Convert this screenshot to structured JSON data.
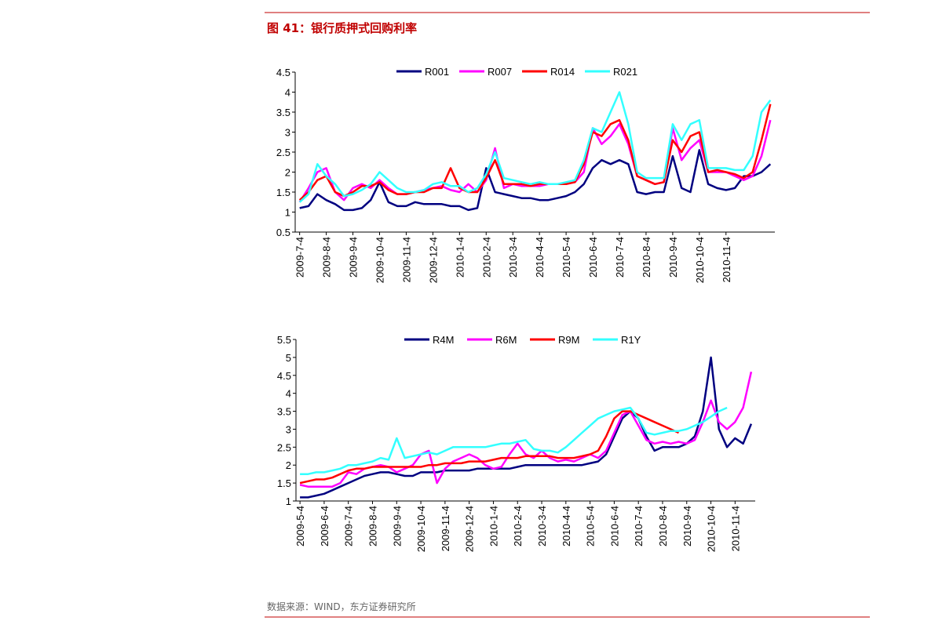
{
  "title": "图 41：银行质押式回购利率",
  "source": "数据来源：WIND，东方证券研究所",
  "chart_data": [
    {
      "type": "line",
      "categories": [
        "2009-7-4",
        null,
        null,
        "2009-8-4",
        null,
        null,
        "2009-9-4",
        null,
        null,
        "2009-10-4",
        null,
        null,
        "2009-11-4",
        null,
        null,
        "2009-12-4",
        null,
        null,
        "2010-1-4",
        null,
        null,
        "2010-2-4",
        null,
        null,
        "2010-3-4",
        null,
        null,
        "2010-4-4",
        null,
        null,
        "2010-5-4",
        null,
        null,
        "2010-6-4",
        null,
        null,
        "2010-7-4",
        null,
        null,
        "2010-8-4",
        null,
        null,
        "2010-9-4",
        null,
        null,
        "2010-10-4",
        null,
        null,
        "2010-11-4",
        null,
        null,
        null,
        null,
        null
      ],
      "ylim": [
        0.5,
        4.5
      ],
      "yticks": [
        0.5,
        1,
        1.5,
        2,
        2.5,
        3,
        3.5,
        4,
        4.5
      ],
      "series": [
        {
          "name": "R001",
          "color": "#000080",
          "values": [
            1.1,
            1.15,
            1.45,
            1.3,
            1.2,
            1.05,
            1.05,
            1.1,
            1.3,
            1.75,
            1.25,
            1.15,
            1.15,
            1.25,
            1.2,
            1.2,
            1.2,
            1.15,
            1.15,
            1.05,
            1.1,
            2.1,
            1.5,
            1.45,
            1.4,
            1.35,
            1.35,
            1.3,
            1.3,
            1.35,
            1.4,
            1.5,
            1.7,
            2.1,
            2.3,
            2.2,
            2.3,
            2.2,
            1.5,
            1.45,
            1.5,
            1.5,
            2.4,
            1.6,
            1.5,
            2.55,
            1.7,
            1.6,
            1.55,
            1.6,
            1.9,
            1.9,
            2.0,
            2.2
          ]
        },
        {
          "name": "R007",
          "color": "#ff00ff",
          "values": [
            1.25,
            1.6,
            2.0,
            2.1,
            1.5,
            1.3,
            1.6,
            1.7,
            1.6,
            1.8,
            1.6,
            1.45,
            1.45,
            1.5,
            1.55,
            1.6,
            1.65,
            1.55,
            1.5,
            1.7,
            1.5,
            1.8,
            2.6,
            1.6,
            1.7,
            1.65,
            1.65,
            1.65,
            1.7,
            1.7,
            1.7,
            1.75,
            2.0,
            3.1,
            2.7,
            2.9,
            3.2,
            2.7,
            1.9,
            1.8,
            1.7,
            1.75,
            3.1,
            2.3,
            2.6,
            2.8,
            2.0,
            2.0,
            2.0,
            1.9,
            1.8,
            1.9,
            2.4,
            3.3
          ]
        },
        {
          "name": "R014",
          "color": "#ff0000",
          "values": [
            1.3,
            1.5,
            1.8,
            1.9,
            1.5,
            1.4,
            1.5,
            1.65,
            1.65,
            1.75,
            1.55,
            1.45,
            1.45,
            1.5,
            1.5,
            1.6,
            1.6,
            2.1,
            1.6,
            1.5,
            1.5,
            1.85,
            2.3,
            1.7,
            1.7,
            1.7,
            1.65,
            1.7,
            1.7,
            1.7,
            1.7,
            1.75,
            2.2,
            3.0,
            2.9,
            3.2,
            3.3,
            2.8,
            1.9,
            1.8,
            1.7,
            1.75,
            2.8,
            2.5,
            2.9,
            3.0,
            2.0,
            2.05,
            2.0,
            1.95,
            1.85,
            2.0,
            2.8,
            3.7
          ]
        },
        {
          "name": "R021",
          "color": "#33ffff",
          "values": [
            1.25,
            1.45,
            2.2,
            1.9,
            1.7,
            1.4,
            1.45,
            1.55,
            1.7,
            2.0,
            1.8,
            1.6,
            1.5,
            1.5,
            1.55,
            1.7,
            1.75,
            1.65,
            1.65,
            1.5,
            1.6,
            1.95,
            2.5,
            1.85,
            1.8,
            1.75,
            1.7,
            1.75,
            1.7,
            1.7,
            1.75,
            1.8,
            2.3,
            3.1,
            3.0,
            3.5,
            4.0,
            3.2,
            2.0,
            1.85,
            1.85,
            1.85,
            3.2,
            2.8,
            3.2,
            3.3,
            2.1,
            2.1,
            2.1,
            2.05,
            2.05,
            2.4,
            3.5,
            3.8
          ]
        }
      ]
    },
    {
      "type": "line",
      "categories": [
        "2009-5-4",
        null,
        null,
        "2009-6-4",
        null,
        null,
        "2009-7-4",
        null,
        null,
        "2009-8-4",
        null,
        null,
        "2009-9-4",
        null,
        null,
        "2009-10-4",
        null,
        null,
        "2009-11-4",
        null,
        null,
        "2009-12-4",
        null,
        null,
        "2010-1-4",
        null,
        null,
        "2010-2-4",
        null,
        null,
        "2010-3-4",
        null,
        null,
        "2010-4-4",
        null,
        null,
        "2010-5-4",
        null,
        null,
        "2010-6-4",
        null,
        null,
        "2010-7-4",
        null,
        null,
        "2010-8-4",
        null,
        null,
        "2010-9-4",
        null,
        null,
        "2010-10-4",
        null,
        null,
        "2010-11-4",
        null,
        null
      ],
      "ylim": [
        1,
        5.5
      ],
      "yticks": [
        1,
        1.5,
        2,
        2.5,
        3,
        3.5,
        4,
        4.5,
        5,
        5.5
      ],
      "series": [
        {
          "name": "R4M",
          "color": "#000080",
          "values": [
            1.1,
            1.1,
            1.15,
            1.2,
            1.3,
            1.4,
            1.5,
            1.6,
            1.7,
            1.75,
            1.8,
            1.8,
            1.75,
            1.7,
            1.7,
            1.8,
            1.8,
            1.8,
            1.85,
            1.85,
            1.85,
            1.85,
            1.9,
            1.9,
            1.9,
            1.9,
            1.9,
            1.95,
            2.0,
            2.0,
            2.0,
            2.0,
            2.0,
            2.0,
            2.0,
            2.0,
            2.05,
            2.1,
            2.3,
            2.8,
            3.3,
            3.5,
            3.3,
            2.8,
            2.4,
            2.5,
            2.5,
            2.5,
            2.6,
            2.8,
            3.5,
            5.0,
            3.0,
            2.5,
            2.75,
            2.6,
            3.15
          ]
        },
        {
          "name": "R6M",
          "color": "#ff00ff",
          "values": [
            1.45,
            1.4,
            1.4,
            1.4,
            1.4,
            1.5,
            1.8,
            1.75,
            1.9,
            1.95,
            2.0,
            1.95,
            1.8,
            1.9,
            2.0,
            2.3,
            2.4,
            1.5,
            1.9,
            2.1,
            2.2,
            2.3,
            2.2,
            2.0,
            1.9,
            1.95,
            2.3,
            2.6,
            2.3,
            2.2,
            2.4,
            2.2,
            2.1,
            2.15,
            2.1,
            2.2,
            2.3,
            2.2,
            2.4,
            2.9,
            3.4,
            3.5,
            3.1,
            2.7,
            2.6,
            2.65,
            2.6,
            2.65,
            2.6,
            2.7,
            3.2,
            3.8,
            3.2,
            3.0,
            3.2,
            3.6,
            4.6
          ]
        },
        {
          "name": "R9M",
          "color": "#ff0000",
          "values": [
            1.5,
            1.55,
            1.6,
            1.6,
            1.65,
            1.75,
            1.85,
            1.9,
            1.9,
            1.95,
            1.95,
            1.95,
            1.95,
            1.95,
            1.95,
            1.95,
            2.0,
            2.0,
            2.05,
            2.05,
            2.05,
            2.1,
            2.1,
            2.1,
            2.15,
            2.2,
            2.2,
            2.2,
            2.25,
            2.25,
            2.25,
            2.25,
            2.2,
            2.2,
            2.2,
            2.25,
            2.3,
            2.4,
            2.8,
            3.3,
            3.5,
            3.5,
            3.4,
            3.3,
            3.2,
            3.1,
            3.0,
            2.9,
            null,
            null,
            null,
            null,
            null,
            null,
            null,
            null,
            null
          ]
        },
        {
          "name": "R1Y",
          "color": "#33ffff",
          "values": [
            1.75,
            1.75,
            1.8,
            1.8,
            1.85,
            1.9,
            2.0,
            2.0,
            2.05,
            2.1,
            2.2,
            2.15,
            2.75,
            2.2,
            2.25,
            2.3,
            2.35,
            2.3,
            2.4,
            2.5,
            2.5,
            2.5,
            2.5,
            2.5,
            2.55,
            2.6,
            2.6,
            2.65,
            2.7,
            2.45,
            2.4,
            2.4,
            2.35,
            2.5,
            2.7,
            2.9,
            3.1,
            3.3,
            3.4,
            3.5,
            3.55,
            3.6,
            3.3,
            2.9,
            2.85,
            2.9,
            2.95,
            2.95,
            3.0,
            3.1,
            3.2,
            3.35,
            3.5,
            3.6,
            null,
            null,
            null
          ]
        }
      ]
    }
  ]
}
